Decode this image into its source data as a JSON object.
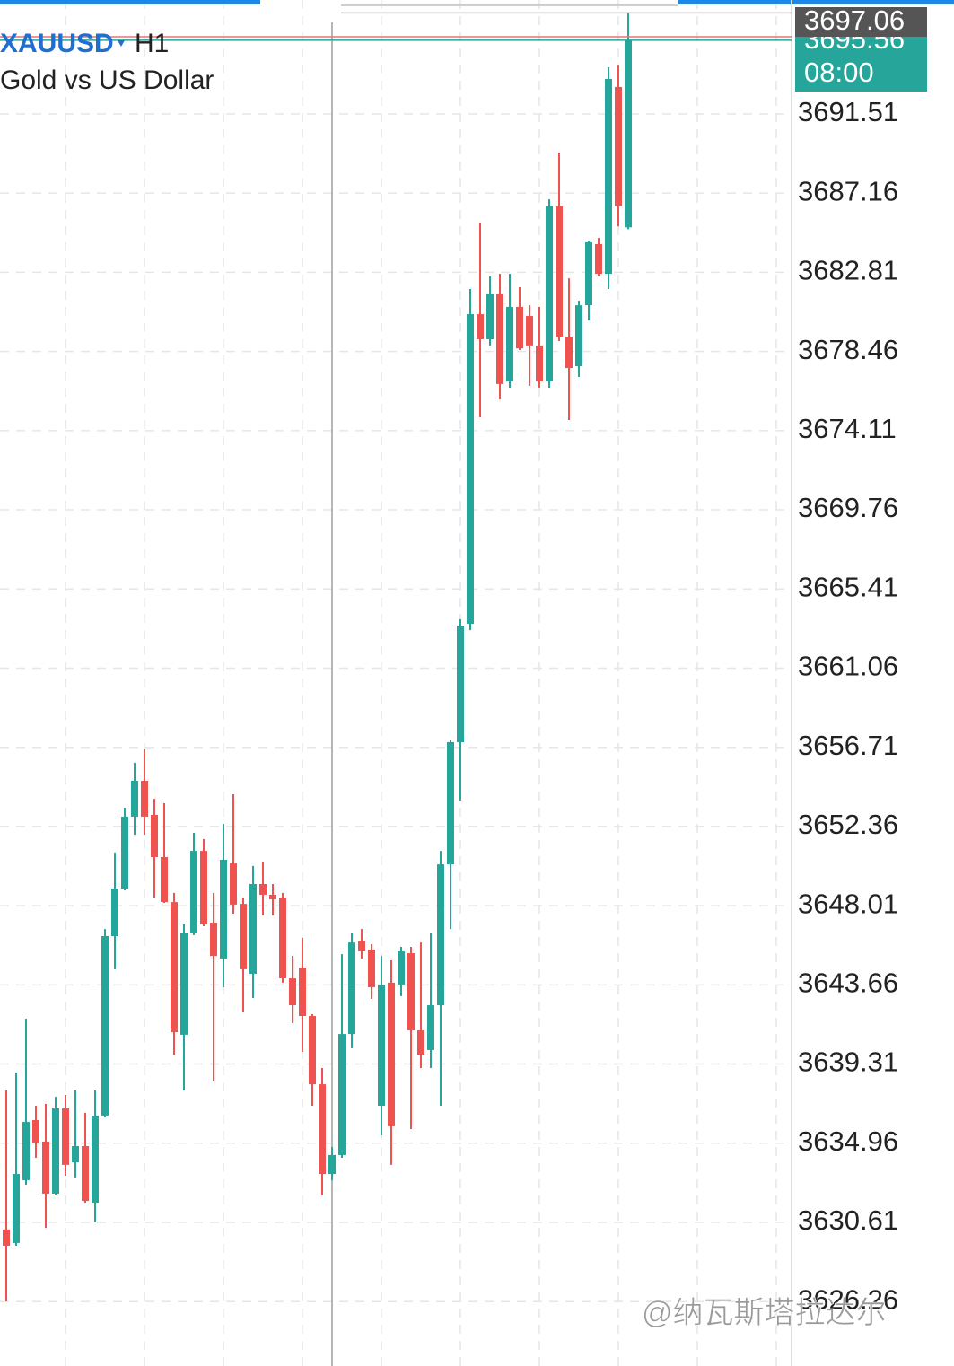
{
  "chart_data": {
    "type": "candlestick",
    "symbol": "XAUUSD",
    "timeframe": "H1",
    "description": "Gold vs US Dollar",
    "up_color": "#26a69a",
    "down_color": "#ef5350",
    "open": [
      3630.22,
      3629.48,
      3632.93,
      3636.23,
      3635.05,
      3632.19,
      3636.87,
      3633.91,
      3634.8,
      3631.69,
      3636.48,
      3646.34,
      3648.95,
      3652.9,
      3654.87,
      3653.0,
      3650.68,
      3648.21,
      3640.92,
      3646.49,
      3651.02,
      3647.08,
      3645.11,
      3650.33,
      3648.11,
      3644.27,
      3649.2,
      3648.61,
      3648.46,
      3644.02,
      3644.61,
      3641.95,
      3638.2,
      3633.27,
      3634.31,
      3640.96,
      3646.09,
      3645.6,
      3637.02,
      3643.78,
      3643.68,
      3645.4,
      3641.16,
      3640.08,
      3642.54,
      3650.28,
      3656.99,
      3663.5,
      3680.51,
      3679.13,
      3681.6,
      3676.81,
      3680.91,
      3680.41,
      3678.79,
      3676.81,
      3686.43,
      3679.28,
      3677.65,
      3681.0,
      3684.36,
      3682.73,
      3692.99,
      3685.28
    ],
    "high": [
      3637.86,
      3638.84,
      3641.8,
      3637.02,
      3637.12,
      3637.51,
      3637.61,
      3637.86,
      3636.63,
      3637.86,
      3646.73,
      3650.93,
      3653.39,
      3655.86,
      3656.6,
      3653.88,
      3653.64,
      3648.71,
      3646.98,
      3652.01,
      3651.67,
      3648.71,
      3652.5,
      3654.13,
      3648.46,
      3650.19,
      3650.43,
      3649.2,
      3648.71,
      3645.25,
      3646.24,
      3642.05,
      3639.09,
      3634.75,
      3645.35,
      3646.49,
      3646.73,
      3645.9,
      3645.25,
      3645.01,
      3645.75,
      3645.75,
      3645.99,
      3646.49,
      3651.02,
      3657.09,
      3663.75,
      3681.89,
      3685.54,
      3682.58,
      3682.73,
      3682.73,
      3681.99,
      3681.0,
      3680.91,
      3686.82,
      3689.39,
      3682.48,
      3681.25,
      3684.55,
      3684.7,
      3694.07,
      3694.21,
      3697.03
    ],
    "low": [
      3626.27,
      3629.33,
      3632.68,
      3634.16,
      3630.31,
      3632.09,
      3633.17,
      3633.08,
      3631.69,
      3630.61,
      3636.38,
      3644.52,
      3648.85,
      3651.91,
      3651.91,
      3648.46,
      3648.16,
      3639.83,
      3637.86,
      3646.39,
      3646.88,
      3638.35,
      3643.53,
      3647.57,
      3642.15,
      3642.94,
      3647.47,
      3647.47,
      3643.78,
      3641.56,
      3639.98,
      3637.02,
      3632.09,
      3632.93,
      3634.16,
      3640.18,
      3645.11,
      3642.89,
      3635.39,
      3633.77,
      3643.04,
      3635.74,
      3639.09,
      3639.09,
      3637.02,
      3646.73,
      3653.79,
      3663.15,
      3674.84,
      3678.79,
      3675.83,
      3676.47,
      3678.54,
      3676.57,
      3676.47,
      3676.47,
      3679.03,
      3674.69,
      3677.06,
      3680.17,
      3682.58,
      3681.89,
      3685.33,
      3685.18
    ],
    "close": [
      3629.33,
      3633.27,
      3636.13,
      3635.0,
      3632.19,
      3636.87,
      3633.77,
      3634.8,
      3631.79,
      3636.48,
      3646.34,
      3648.95,
      3652.9,
      3654.87,
      3652.9,
      3650.68,
      3648.21,
      3641.06,
      3646.49,
      3651.02,
      3646.98,
      3645.25,
      3650.53,
      3648.07,
      3644.52,
      3649.2,
      3648.61,
      3648.36,
      3644.02,
      3642.54,
      3641.95,
      3638.2,
      3633.27,
      3634.31,
      3640.96,
      3645.99,
      3645.5,
      3643.53,
      3643.68,
      3635.89,
      3645.5,
      3641.16,
      3639.83,
      3642.54,
      3650.28,
      3656.99,
      3663.4,
      3680.51,
      3679.13,
      3681.6,
      3676.67,
      3680.91,
      3678.63,
      3678.79,
      3676.81,
      3686.43,
      3679.28,
      3677.55,
      3681.0,
      3684.46,
      3682.73,
      3693.43,
      3686.43,
      3695.55
    ],
    "ylim": [
      3622.72,
      3697.77
    ],
    "yticks": [
      3626.26,
      3630.61,
      3634.96,
      3639.31,
      3643.66,
      3648.01,
      3652.36,
      3656.71,
      3661.06,
      3665.41,
      3669.76,
      3674.11,
      3678.46,
      3682.81,
      3687.16,
      3691.51
    ],
    "grid": true,
    "ask_price": 3697.06,
    "bid_price": 3695.56,
    "bar_countdown": "08:00",
    "watermark": "@纳瓦斯塔拉达尔"
  }
}
